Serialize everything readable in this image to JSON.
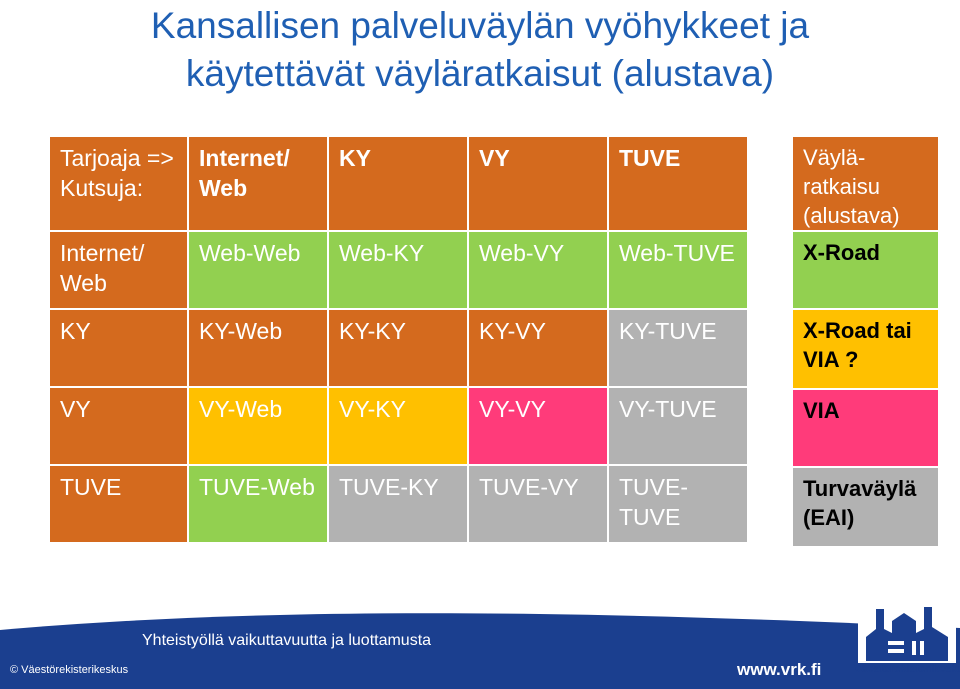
{
  "title_line1": "Kansallisen palveluväylän vyöhykkeet ja",
  "title_line2": "käytettävät väyläratkaisut (alustava)",
  "table": {
    "corner": "Tarjoaja => Kutsuja:",
    "header": [
      "Internet/ Web",
      "KY",
      "VY",
      "TUVE"
    ],
    "right_header": "Väylä-ratkaisu (alustava)",
    "rows": [
      {
        "label": "Internet/ Web",
        "cells": [
          "Web-Web",
          "Web-KY",
          "Web-VY",
          "Web-TUVE"
        ],
        "solution": "X-Road"
      },
      {
        "label": "KY",
        "cells": [
          "KY-Web",
          "KY-KY",
          "KY-VY",
          "KY-TUVE"
        ],
        "solution": "X-Road tai VIA ?"
      },
      {
        "label": "VY",
        "cells": [
          "VY-Web",
          "VY-KY",
          "VY-VY",
          "VY-TUVE"
        ],
        "solution": "VIA"
      },
      {
        "label": "TUVE",
        "cells": [
          "TUVE-Web",
          "TUVE-KY",
          "TUVE-VY",
          "TUVE-TUVE"
        ],
        "solution": "Turvaväylä (EAI)"
      }
    ]
  },
  "colors": {
    "orange": "#d46a1e",
    "green": "#92d050",
    "gray": "#b2b2b2",
    "yellow": "#ffc000",
    "pink": "#ff3b7a",
    "title_blue": "#1f5fb3",
    "footer_blue": "#1b3f8f"
  },
  "footer": {
    "slogan": "Yhteistyöllä vaikuttavuutta ja luottamusta",
    "copyright": "© Väestörekisterikeskus",
    "url": "www.vrk.fi",
    "logo_text": "Väestörekisterikeskus",
    "logo_icon": "vrk-logo-icon"
  }
}
